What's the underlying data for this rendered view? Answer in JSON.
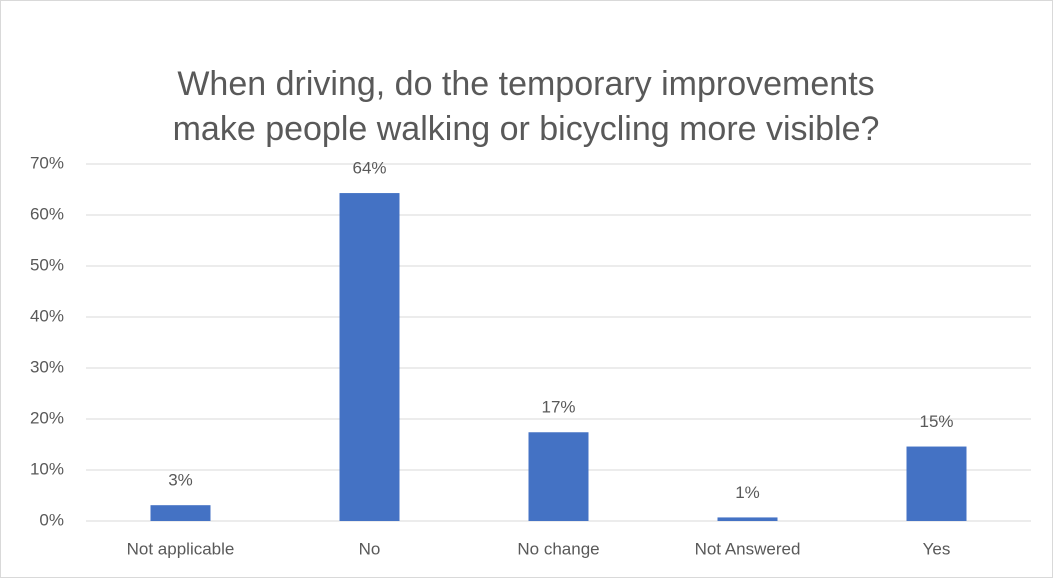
{
  "chart_data": {
    "type": "bar",
    "title": "When driving, do the temporary improvements make people walking or bicycling more visible?",
    "categories": [
      "Not applicable",
      "No",
      "No change",
      "Not Answered",
      "Yes"
    ],
    "values": [
      3.1,
      64.3,
      17.4,
      0.7,
      14.6
    ],
    "value_labels": [
      "3%",
      "64%",
      "17%",
      "1%",
      "15%"
    ],
    "color": "#4472c4",
    "ylim": [
      0,
      70
    ],
    "yticks": [
      {
        "value": 0,
        "label": "0%"
      },
      {
        "value": 10,
        "label": "10%"
      },
      {
        "value": 20,
        "label": "20%"
      },
      {
        "value": 30,
        "label": "30%"
      },
      {
        "value": 40,
        "label": "40%"
      },
      {
        "value": 50,
        "label": "50%"
      },
      {
        "value": 60,
        "label": "60%"
      },
      {
        "value": 70,
        "label": "70%"
      }
    ],
    "grid": true
  }
}
